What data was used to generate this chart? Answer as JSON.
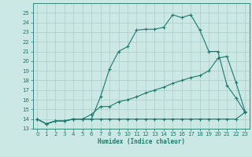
{
  "xlabel": "Humidex (Indice chaleur)",
  "xlim": [
    -0.5,
    23.5
  ],
  "ylim": [
    13,
    26
  ],
  "yticks": [
    13,
    14,
    15,
    16,
    17,
    18,
    19,
    20,
    21,
    22,
    23,
    24,
    25
  ],
  "xticks": [
    0,
    1,
    2,
    3,
    4,
    5,
    6,
    7,
    8,
    9,
    10,
    11,
    12,
    13,
    14,
    15,
    16,
    17,
    18,
    19,
    20,
    21,
    22,
    23
  ],
  "bg_color": "#cce8e4",
  "line_color": "#1a7a6e",
  "grid_color": "#aaccc8",
  "line1_y": [
    14.0,
    13.5,
    13.8,
    13.8,
    14.0,
    14.0,
    14.0,
    16.3,
    19.2,
    21.0,
    21.5,
    23.2,
    23.3,
    23.3,
    23.5,
    24.8,
    24.5,
    24.8,
    23.2,
    21.0,
    21.0,
    17.5,
    16.2,
    14.7
  ],
  "line2_y": [
    14.0,
    13.5,
    13.8,
    13.8,
    14.0,
    14.0,
    14.5,
    15.3,
    15.3,
    15.8,
    16.0,
    16.3,
    16.7,
    17.0,
    17.3,
    17.7,
    18.0,
    18.3,
    18.5,
    19.0,
    20.3,
    20.5,
    17.8,
    14.8
  ],
  "line3_y": [
    14.0,
    13.5,
    13.8,
    13.8,
    14.0,
    14.0,
    14.0,
    14.0,
    14.0,
    14.0,
    14.0,
    14.0,
    14.0,
    14.0,
    14.0,
    14.0,
    14.0,
    14.0,
    14.0,
    14.0,
    14.0,
    14.0,
    14.0,
    14.7
  ]
}
